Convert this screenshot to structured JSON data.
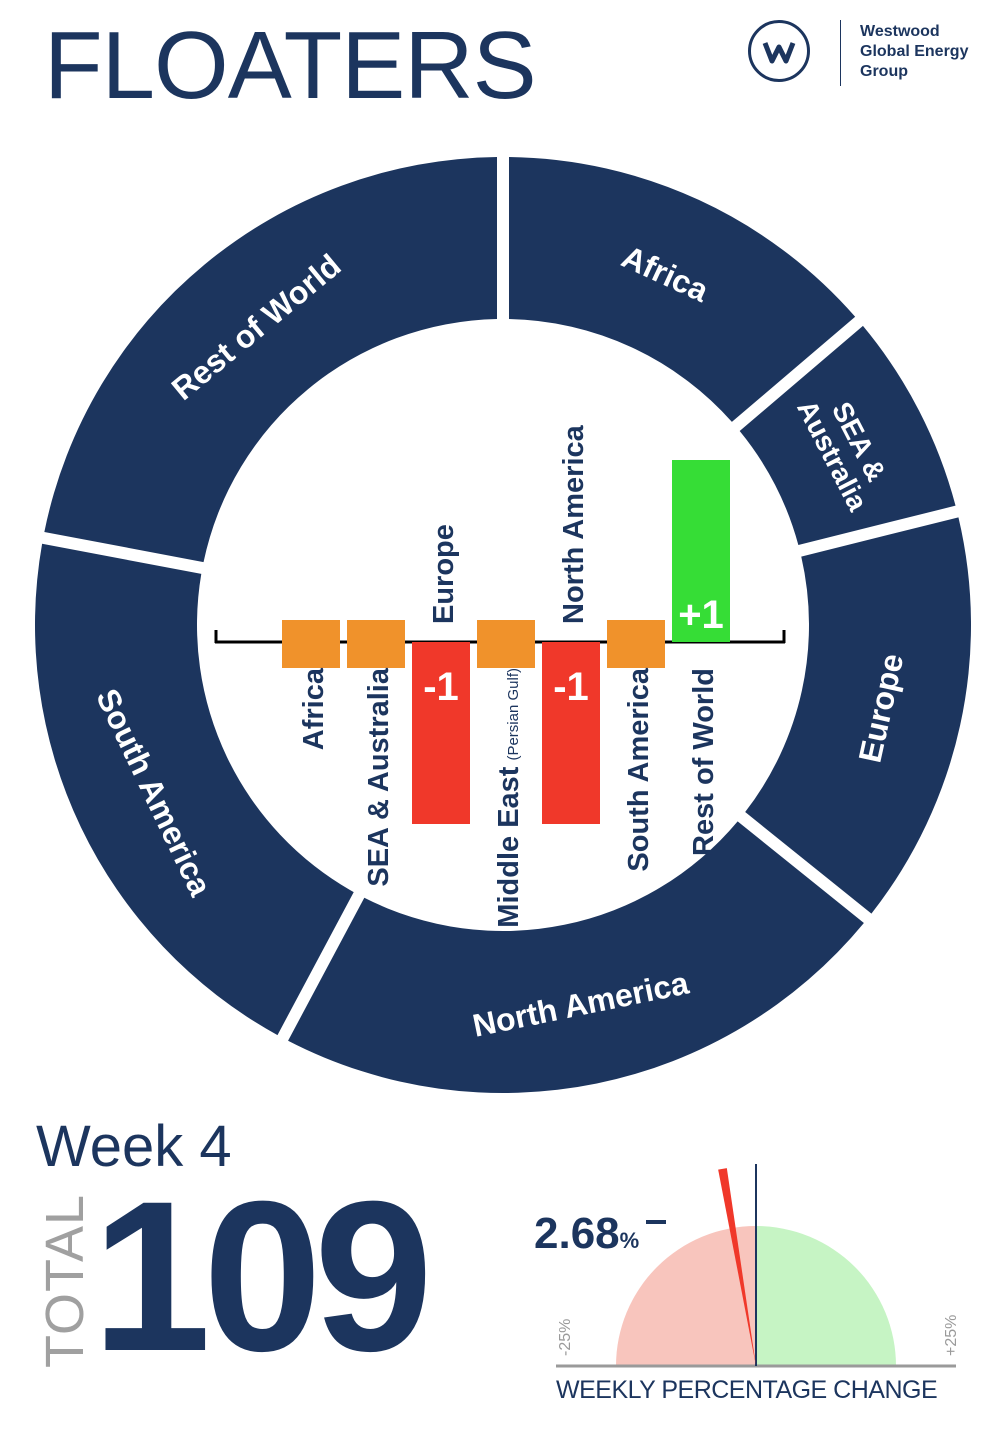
{
  "title": "FLOATERS",
  "brand": {
    "line1": "Westwood",
    "line2": "Global Energy",
    "line3": "Group",
    "mark": "w-logo-icon"
  },
  "colors": {
    "navy": "#1c355e",
    "orange": "#f0922b",
    "red": "#f0382a",
    "green": "#36dd36",
    "gauge_neg": "#f8c5bd",
    "gauge_pos": "#c6f4c4"
  },
  "week_label": "Week 4",
  "total_label": "TOTAL",
  "total_value": "109",
  "chart_data": [
    {
      "type": "pie",
      "variant": "donut",
      "slices": [
        {
          "label": "Africa",
          "value": 15
        },
        {
          "label": "SEA & Australia",
          "value": 8
        },
        {
          "label": "Europe",
          "value": 16
        },
        {
          "label": "North America",
          "value": 24
        },
        {
          "label": "South America",
          "value": 22
        },
        {
          "label": "Rest of World",
          "value": 24
        }
      ]
    },
    {
      "type": "bar",
      "categories": [
        "Africa",
        "SEA & Australia",
        "Europe",
        "Middle East",
        "North America",
        "South America",
        "Rest of World"
      ],
      "category_notes": [
        "",
        "",
        "",
        "(Persian Gulf)",
        "",
        "",
        ""
      ],
      "values": [
        0,
        0,
        -1,
        0,
        -1,
        0,
        1
      ],
      "data_labels": [
        "",
        "",
        "-1",
        "",
        "-1",
        "",
        "+1"
      ],
      "ylim": [
        -3.2,
        3
      ]
    },
    {
      "type": "gauge",
      "value": -2.68,
      "value_label": "2.68",
      "value_unit": "%",
      "range": [
        -25,
        25
      ],
      "min_label": "-25%",
      "max_label": "+25%",
      "xlabel": "WEEKLY PERCENTAGE CHANGE"
    }
  ]
}
